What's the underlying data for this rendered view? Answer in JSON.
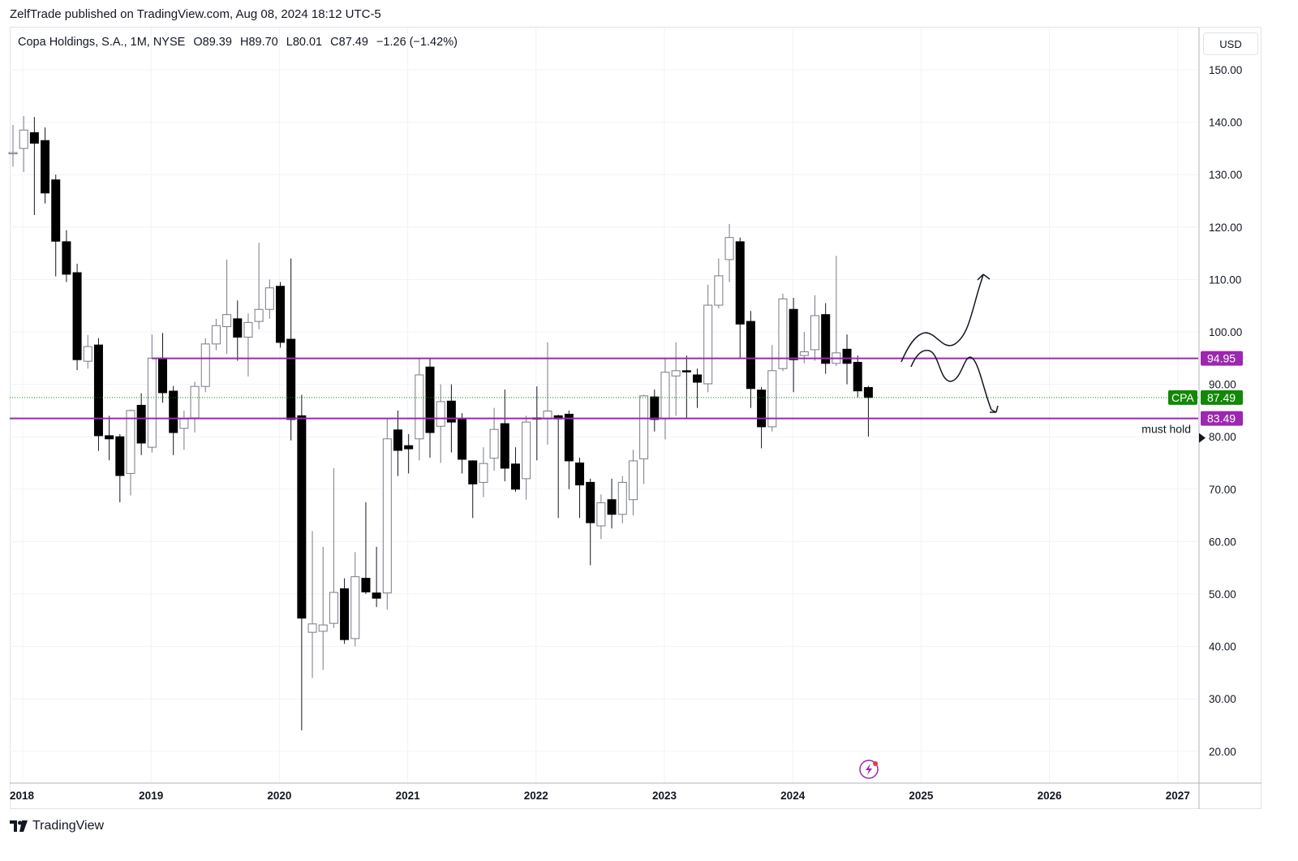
{
  "publisher_line": "ZelfTrade published on TradingView.com, Aug 08, 2024 18:12 UTC-5",
  "legend": {
    "symbol": "Copa Holdings, S.A., 1M, NYSE",
    "open": "O89.39",
    "high": "H89.70",
    "low": "L80.01",
    "close": "C87.49",
    "change": "−1.26 (−1.42%)"
  },
  "currency_button": "USD",
  "footer_brand": "TradingView",
  "colors": {
    "level": "#9c27b0",
    "last_price": "#138808",
    "bear": "#000000",
    "bull": "#ffffff",
    "grid": "#f0f3fa"
  },
  "chart_data": {
    "type": "candlestick",
    "title": "Copa Holdings, S.A., 1M, NYSE",
    "xlabel": "",
    "ylabel": "USD",
    "ylim": [
      12,
      160
    ],
    "y_ticks": [
      "150.00",
      "140.00",
      "130.00",
      "120.00",
      "110.00",
      "100.00",
      "90.00",
      "80.00",
      "70.00",
      "60.00",
      "50.00",
      "40.00",
      "30.00",
      "20.00"
    ],
    "x_ticks": [
      "2018",
      "2019",
      "2020",
      "2021",
      "2022",
      "2023",
      "2024",
      "2025",
      "2026",
      "2027"
    ],
    "start_month": "2017-12",
    "candles": [
      [
        134.0,
        139.5,
        131.5,
        134.2
      ],
      [
        135.0,
        141.2,
        130.5,
        138.5
      ],
      [
        138.0,
        141.0,
        122.3,
        136.0
      ],
      [
        136.5,
        139.0,
        124.5,
        126.5
      ],
      [
        129.0,
        130.0,
        110.6,
        117.3
      ],
      [
        117.2,
        119.4,
        109.5,
        111.0
      ],
      [
        111.3,
        113.0,
        92.7,
        94.7
      ],
      [
        94.4,
        99.4,
        93.0,
        97.2
      ],
      [
        97.5,
        98.8,
        77.3,
        80.2
      ],
      [
        80.2,
        84.0,
        75.5,
        79.6
      ],
      [
        80.0,
        80.5,
        67.5,
        72.6
      ],
      [
        73.0,
        85.2,
        68.8,
        85.0
      ],
      [
        86.0,
        88.3,
        76.5,
        78.8
      ],
      [
        78.0,
        99.5,
        77.0,
        95.0
      ],
      [
        95.0,
        99.8,
        86.5,
        88.4
      ],
      [
        88.7,
        89.7,
        76.5,
        80.8
      ],
      [
        81.6,
        85.0,
        77.5,
        83.4
      ],
      [
        83.6,
        90.5,
        80.8,
        89.6
      ],
      [
        89.6,
        98.8,
        88.5,
        97.7
      ],
      [
        97.7,
        102.5,
        96.5,
        101.2
      ],
      [
        101.0,
        113.8,
        95.8,
        103.3
      ],
      [
        102.5,
        106.0,
        94.5,
        99.0
      ],
      [
        99.0,
        103.5,
        91.5,
        101.8
      ],
      [
        102.0,
        117.0,
        100.5,
        104.3
      ],
      [
        104.3,
        110.0,
        102.5,
        108.4
      ],
      [
        108.7,
        109.5,
        97.0,
        98.0
      ],
      [
        98.6,
        114.0,
        79.3,
        83.3
      ],
      [
        84.0,
        88.0,
        24.0,
        45.4
      ],
      [
        42.7,
        62.0,
        34.0,
        44.3
      ],
      [
        42.9,
        59.0,
        35.5,
        44.1
      ],
      [
        44.4,
        74.0,
        43.5,
        50.3
      ],
      [
        51.0,
        53.0,
        40.5,
        41.3
      ],
      [
        41.5,
        58.0,
        40.0,
        53.3
      ],
      [
        53.0,
        67.5,
        50.0,
        50.4
      ],
      [
        50.2,
        59.0,
        47.5,
        49.2
      ],
      [
        50.2,
        83.5,
        47.0,
        79.6
      ],
      [
        81.3,
        85.0,
        72.5,
        77.4
      ],
      [
        78.3,
        80.5,
        73.0,
        77.7
      ],
      [
        79.6,
        95.0,
        75.5,
        91.8
      ],
      [
        93.3,
        95.0,
        76.0,
        80.8
      ],
      [
        82.0,
        90.0,
        75.0,
        86.7
      ],
      [
        86.8,
        90.0,
        77.0,
        82.8
      ],
      [
        83.3,
        84.5,
        73.0,
        75.7
      ],
      [
        75.4,
        75.5,
        64.5,
        71.0
      ],
      [
        71.3,
        78.0,
        68.5,
        74.9
      ],
      [
        75.9,
        85.5,
        73.5,
        81.4
      ],
      [
        82.5,
        89.0,
        71.5,
        74.0
      ],
      [
        74.8,
        78.0,
        69.5,
        70.0
      ],
      [
        72.0,
        84.0,
        68.0,
        82.8
      ],
      [
        83.6,
        89.6,
        75.5,
        83.5
      ],
      [
        83.4,
        98.0,
        78.5,
        84.9
      ],
      [
        84.0,
        84.2,
        64.5,
        83.4
      ],
      [
        84.3,
        85.0,
        70.0,
        75.4
      ],
      [
        75.0,
        76.0,
        64.5,
        70.8
      ],
      [
        71.3,
        72.0,
        55.5,
        63.6
      ],
      [
        63.0,
        69.0,
        60.5,
        67.4
      ],
      [
        68.0,
        72.0,
        62.5,
        65.2
      ],
      [
        65.2,
        72.5,
        63.5,
        71.3
      ],
      [
        68.0,
        77.5,
        65.0,
        75.4
      ],
      [
        75.8,
        88.0,
        71.0,
        87.8
      ],
      [
        87.6,
        89.0,
        81.0,
        83.3
      ],
      [
        83.4,
        95.0,
        79.5,
        92.3
      ],
      [
        91.6,
        98.0,
        84.0,
        92.6
      ],
      [
        92.6,
        95.5,
        83.5,
        92.5
      ],
      [
        91.8,
        93.0,
        85.5,
        90.4
      ],
      [
        90.1,
        109.0,
        88.5,
        105.1
      ],
      [
        105.1,
        114.0,
        104.5,
        110.7
      ],
      [
        113.8,
        120.6,
        109.5,
        118.0
      ],
      [
        117.2,
        118.0,
        95.0,
        101.5
      ],
      [
        102.0,
        104.0,
        85.5,
        89.2
      ],
      [
        88.9,
        89.5,
        77.8,
        81.9
      ],
      [
        81.9,
        97.5,
        81.0,
        92.6
      ],
      [
        93.0,
        107.3,
        92.5,
        106.3
      ],
      [
        104.3,
        106.5,
        88.5,
        94.7
      ],
      [
        95.5,
        100.0,
        94.0,
        96.2
      ],
      [
        96.6,
        107.0,
        94.5,
        103.1
      ],
      [
        103.3,
        105.5,
        92.0,
        94.0
      ],
      [
        94.0,
        114.5,
        93.5,
        96.0
      ],
      [
        96.7,
        99.5,
        90.0,
        94.0
      ],
      [
        94.2,
        95.5,
        87.5,
        88.75
      ],
      [
        89.39,
        89.7,
        80.01,
        87.49
      ]
    ],
    "levels": [
      {
        "value": 94.95,
        "label": "94.95"
      },
      {
        "value": 83.49,
        "label": "83.49",
        "note": "must hold"
      }
    ],
    "last_price": {
      "symbol": "CPA",
      "value": 87.49,
      "label": "87.49"
    },
    "grid": true
  }
}
